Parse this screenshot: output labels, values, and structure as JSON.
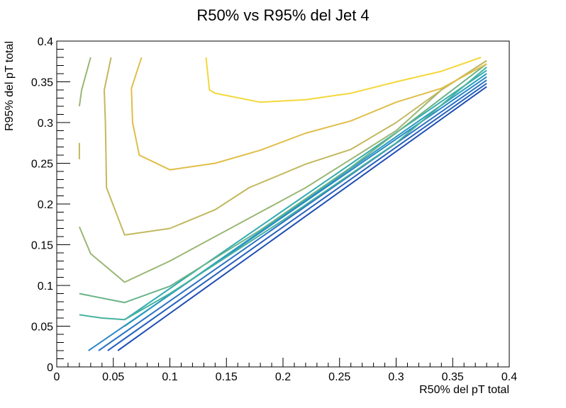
{
  "chart_data": {
    "type": "line",
    "title": "R50% vs R95% del Jet 4",
    "xlabel": "R50% del pT total",
    "ylabel": "R95% del pT total",
    "xlim": [
      0,
      0.4
    ],
    "ylim": [
      0,
      0.4
    ],
    "x_major_ticks": [
      0,
      0.05,
      0.1,
      0.15,
      0.2,
      0.25,
      0.3,
      0.35,
      0.4
    ],
    "x_tick_labels": [
      "0",
      "0.05",
      "0.1",
      "0.15",
      "0.2",
      "0.25",
      "0.3",
      "0.35",
      "0.4"
    ],
    "y_major_ticks": [
      0,
      0.05,
      0.1,
      0.15,
      0.2,
      0.25,
      0.3,
      0.35,
      0.4
    ],
    "y_tick_labels": [
      "0",
      "0.05",
      "0.1",
      "0.15",
      "0.2",
      "0.25",
      "0.3",
      "0.35",
      "0.4"
    ],
    "grid": false,
    "series": [
      {
        "color": "#1f4fb3",
        "segments": [
          [
            [
              0.054,
              0.02
            ],
            [
              0.38,
              0.344
            ]
          ]
        ]
      },
      {
        "color": "#2761bd",
        "segments": [
          [
            [
              0.045,
              0.02
            ],
            [
              0.38,
              0.348
            ]
          ]
        ]
      },
      {
        "color": "#2a73c4",
        "segments": [
          [
            [
              0.037,
              0.02
            ],
            [
              0.38,
              0.352
            ]
          ]
        ]
      },
      {
        "color": "#2887c6",
        "segments": [
          [
            [
              0.028,
              0.02
            ],
            [
              0.38,
              0.356
            ]
          ]
        ]
      },
      {
        "color": "#2a9dbe",
        "segments": [
          [
            [
              0.06,
              0.05
            ],
            [
              0.38,
              0.36
            ]
          ]
        ]
      },
      {
        "color": "#33abb0",
        "segments": [
          [
            [
              0.06,
              0.058
            ],
            [
              0.38,
              0.364
            ]
          ]
        ]
      },
      {
        "color": "#45b29e",
        "segments": [
          [
            [
              0.02,
              0.064
            ],
            [
              0.04,
              0.06
            ],
            [
              0.06,
              0.058
            ],
            [
              0.1,
              0.09
            ],
            [
              0.2,
              0.18
            ],
            [
              0.3,
              0.275
            ],
            [
              0.38,
              0.368
            ]
          ]
        ]
      },
      {
        "color": "#6ab48a",
        "segments": [
          [
            [
              0.02,
              0.09
            ],
            [
              0.06,
              0.079
            ],
            [
              0.1,
              0.099
            ],
            [
              0.18,
              0.168
            ],
            [
              0.26,
              0.245
            ],
            [
              0.38,
              0.372
            ]
          ]
        ]
      },
      {
        "color": "#99b774",
        "segments": [
          [
            [
              0.02,
              0.172
            ],
            [
              0.03,
              0.139
            ],
            [
              0.06,
              0.104
            ],
            [
              0.1,
              0.13
            ],
            [
              0.18,
              0.19
            ],
            [
              0.22,
              0.22
            ],
            [
              0.26,
              0.255
            ],
            [
              0.3,
              0.29
            ],
            [
              0.34,
              0.34
            ],
            [
              0.38,
              0.376
            ]
          ],
          [
            [
              0.02,
              0.32
            ],
            [
              0.022,
              0.34
            ],
            [
              0.03,
              0.38
            ]
          ]
        ]
      },
      {
        "color": "#c3b85e",
        "segments": [
          [
            [
              0.02,
              0.255
            ],
            [
              0.02,
              0.275
            ]
          ],
          [
            [
              0.048,
              0.38
            ],
            [
              0.042,
              0.34
            ],
            [
              0.043,
              0.3
            ],
            [
              0.044,
              0.22
            ],
            [
              0.06,
              0.162
            ],
            [
              0.1,
              0.17
            ],
            [
              0.14,
              0.193
            ],
            [
              0.17,
              0.22
            ],
            [
              0.22,
              0.249
            ],
            [
              0.26,
              0.267
            ],
            [
              0.3,
              0.3
            ],
            [
              0.34,
              0.34
            ],
            [
              0.38,
              0.376
            ]
          ]
        ]
      },
      {
        "color": "#e0be48",
        "segments": [
          [
            [
              0.075,
              0.38
            ],
            [
              0.066,
              0.342
            ],
            [
              0.067,
              0.3
            ],
            [
              0.073,
              0.26
            ],
            [
              0.1,
              0.242
            ],
            [
              0.14,
              0.25
            ],
            [
              0.18,
              0.266
            ],
            [
              0.22,
              0.287
            ],
            [
              0.26,
              0.302
            ],
            [
              0.3,
              0.325
            ],
            [
              0.34,
              0.342
            ],
            [
              0.38,
              0.372
            ]
          ]
        ]
      },
      {
        "color": "#f4d83a",
        "segments": [
          [
            [
              0.132,
              0.38
            ],
            [
              0.135,
              0.34
            ],
            [
              0.14,
              0.336
            ],
            [
              0.18,
              0.325
            ],
            [
              0.22,
              0.328
            ],
            [
              0.26,
              0.336
            ],
            [
              0.3,
              0.35
            ],
            [
              0.34,
              0.363
            ],
            [
              0.375,
              0.38
            ]
          ]
        ]
      }
    ]
  }
}
